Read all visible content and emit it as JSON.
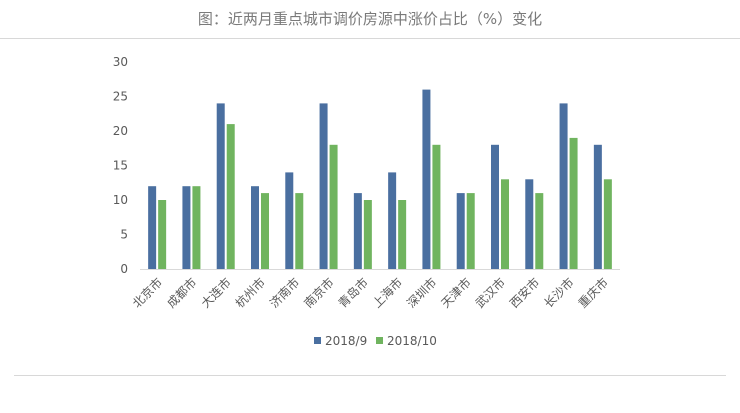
{
  "chart_data": {
    "type": "bar",
    "title": "图：近两月重点城市调价房源中涨价占比（%）变化",
    "xlabel": "",
    "ylabel": "",
    "ylim": [
      0,
      30
    ],
    "yticks": [
      0,
      5,
      10,
      15,
      20,
      25,
      30
    ],
    "grid": false,
    "legend_position": "bottom",
    "categories": [
      "北京市",
      "成都市",
      "大连市",
      "杭州市",
      "济南市",
      "南京市",
      "青岛市",
      "上海市",
      "深圳市",
      "天津市",
      "武汉市",
      "西安市",
      "长沙市",
      "重庆市"
    ],
    "series": [
      {
        "name": "2018/9",
        "color": "#4a6fa0",
        "values": [
          12,
          12,
          24,
          12,
          14,
          24,
          11,
          14,
          26,
          11,
          18,
          13,
          24,
          18
        ]
      },
      {
        "name": "2018/10",
        "color": "#70b45f",
        "values": [
          10,
          12,
          21,
          11,
          11,
          18,
          10,
          10,
          18,
          11,
          13,
          11,
          19,
          13
        ]
      }
    ]
  }
}
